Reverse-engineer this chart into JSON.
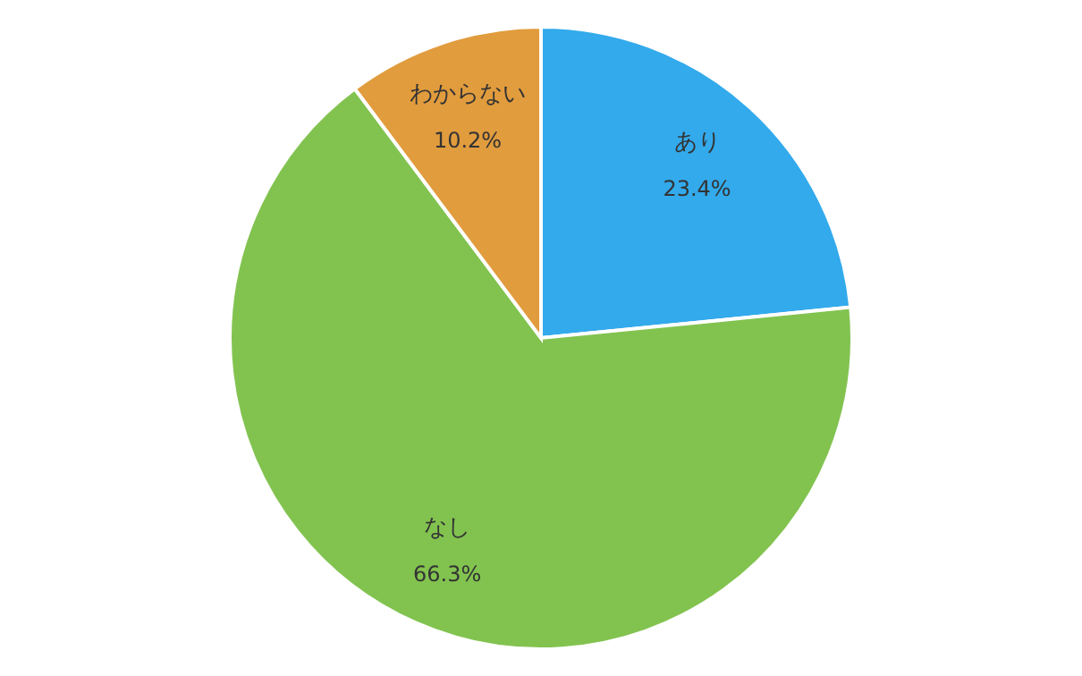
{
  "chart_data": {
    "type": "pie",
    "categories": [
      "あり",
      "なし",
      "わからない"
    ],
    "values": [
      23.4,
      66.3,
      10.2
    ],
    "value_labels": [
      "23.4%",
      "66.3%",
      "10.2%"
    ],
    "colors": [
      "#33aaec",
      "#82c350",
      "#e19c3e"
    ],
    "legend": false
  }
}
